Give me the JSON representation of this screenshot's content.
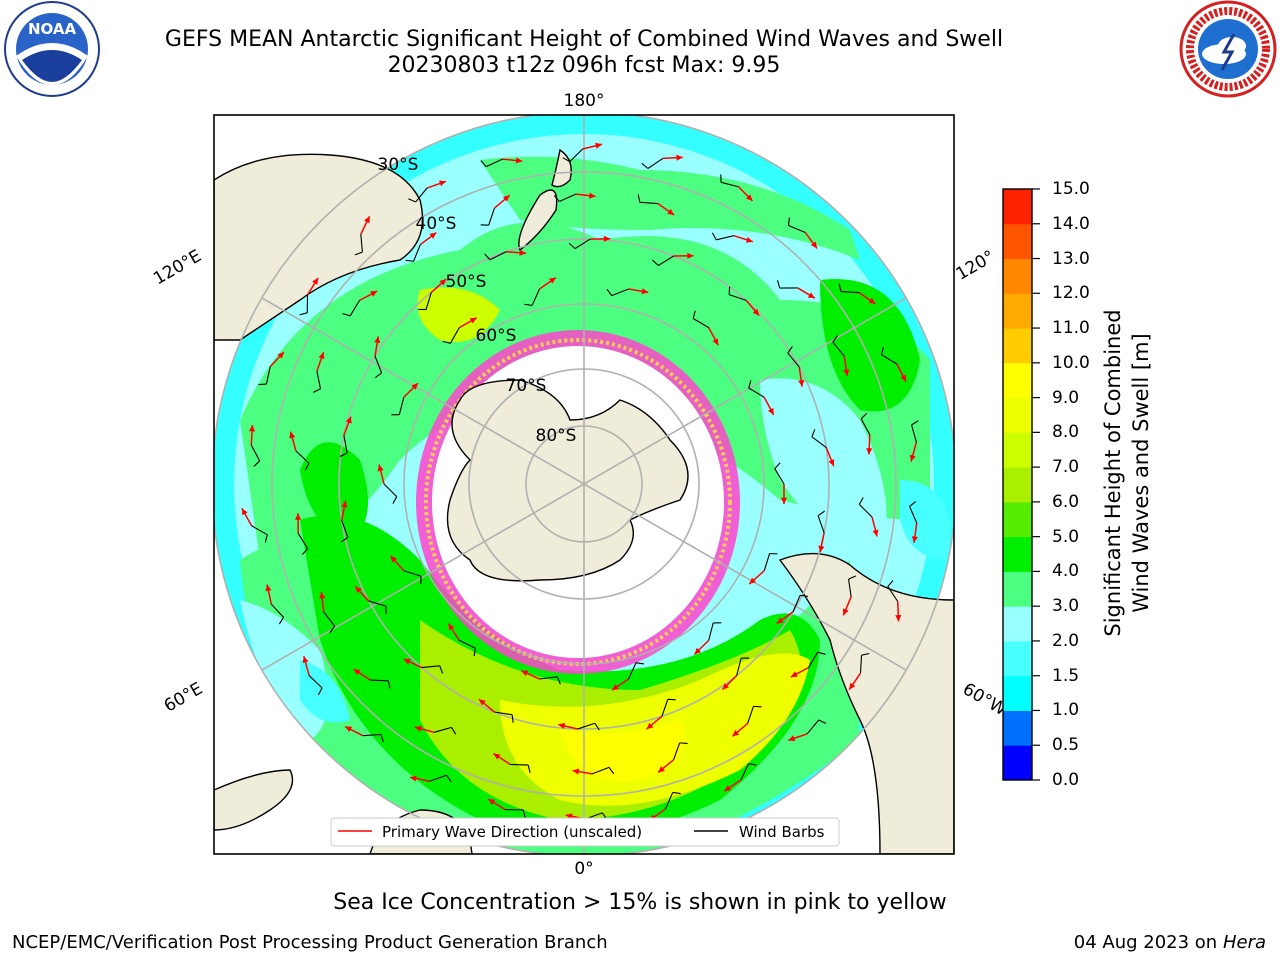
{
  "header": {
    "title_line1": "GEFS MEAN Antarctic Significant Height of Combined Wind Waves and Swell",
    "title_line2": "20230803 t12z 096h fcst   Max: 9.95"
  },
  "logos": {
    "left": {
      "name": "NOAA",
      "text": "NOAA",
      "ring_text": "NATIONAL OCEANIC AND ATMOSPHERIC ADMINISTRATION · U.S. DEPARTMENT OF COMMERCE"
    },
    "right": {
      "name": "National Weather Service",
      "ring_text": "NATIONAL WEATHER SERVICE"
    }
  },
  "map": {
    "projection": "south-polar-stereographic",
    "longitude_labels": {
      "top": "180°",
      "bottom": "0°",
      "upper_left": "120°E",
      "lower_left": "60°E",
      "upper_right": "120°",
      "lower_right": "60°W"
    },
    "latitude_labels": [
      "30°S",
      "40°S",
      "50°S",
      "60°S",
      "70°S",
      "80°S"
    ],
    "legend": {
      "primary_wave": "Primary Wave Direction (unscaled)",
      "wind_barbs": "Wind Barbs"
    },
    "colors": {
      "land": "#efecd9",
      "ice_free_ocean_low": "#99ffff",
      "wave_mid": "#00ff00",
      "wave_high": "#ffff00",
      "sea_ice": "#ff44cc",
      "arrow": "#ff0000"
    }
  },
  "colorbar": {
    "label_line1": "Significant Height of Combined",
    "label_line2": "Wind Waves and Swell [m]",
    "ticks": [
      "0.0",
      "0.5",
      "1.0",
      "1.5",
      "2.0",
      "3.0",
      "4.0",
      "5.0",
      "6.0",
      "7.0",
      "8.0",
      "9.0",
      "10.0",
      "11.0",
      "12.0",
      "13.0",
      "14.0",
      "15.0"
    ],
    "colors": [
      "#0000ff",
      "#0070ff",
      "#00ffff",
      "#47ffff",
      "#99ffff",
      "#4dff80",
      "#00ee00",
      "#55ee00",
      "#aaee00",
      "#ccff00",
      "#eeff00",
      "#ffff00",
      "#ffcc00",
      "#ffaa00",
      "#ff8800",
      "#ff5500",
      "#ff2200"
    ]
  },
  "footer": {
    "sea_ice_note": "Sea Ice Concentration > 15% is shown in pink to yellow",
    "branch": "NCEP/EMC/Verification Post Processing Product Generation Branch",
    "date": "04 Aug 2023 on",
    "system": "Hera"
  }
}
